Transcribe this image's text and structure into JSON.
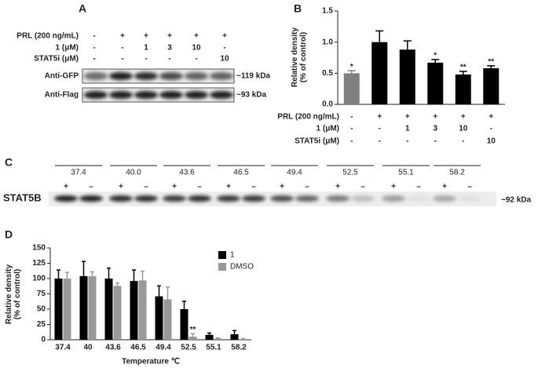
{
  "panel_a": {
    "letter": "A",
    "conditions": [
      {
        "label": "PRL (200 ng/mL)",
        "values": [
          "-",
          "+",
          "+",
          "+",
          "+",
          "+"
        ]
      },
      {
        "label": "1    (μM)",
        "values": [
          "-",
          "-",
          "1",
          "3",
          "10",
          "-"
        ]
      },
      {
        "label": "STAT5i (μM)",
        "values": [
          "-",
          "-",
          "-",
          "-",
          "-",
          "10"
        ]
      }
    ],
    "blots": [
      {
        "label": "Anti-GFP",
        "size": "~119 kDa"
      },
      {
        "label": "Anti-Flag",
        "size": "~93 kDa"
      }
    ]
  },
  "panel_c": {
    "letter": "C",
    "temperatures": [
      "37.4",
      "40.0",
      "43.6",
      "46.5",
      "49.4",
      "52.5",
      "55.1",
      "58.2"
    ],
    "treatments": [
      "+",
      "–"
    ],
    "protein": "STAT5B",
    "size": "~92 kDa"
  },
  "chart_data": [
    {
      "letter": "B",
      "type": "bar",
      "ylabel": [
        "Relative density",
        "(% of control)"
      ],
      "values": [
        0.5,
        1.0,
        0.88,
        0.67,
        0.48,
        0.58
      ],
      "errors": [
        0.04,
        0.18,
        0.14,
        0.05,
        0.05,
        0.04
      ],
      "colors": [
        "#808080",
        "#000000",
        "#000000",
        "#000000",
        "#000000",
        "#000000"
      ],
      "significance": [
        "*",
        null,
        null,
        "*",
        "**",
        "**"
      ],
      "ylim": [
        0,
        1.5
      ],
      "yticks": [
        {
          "value": 0,
          "label": "0.0"
        },
        0.5,
        {
          "value": 1,
          "label": "1.0"
        },
        1.5
      ],
      "conditions": [
        {
          "label": "PRL (200 ng/mL)",
          "values": [
            "-",
            "+",
            "+",
            "+",
            "+",
            "+"
          ]
        },
        {
          "label": "1    (μM)",
          "values": [
            "-",
            "-",
            "1",
            "3",
            "10",
            "-"
          ]
        },
        {
          "label": "STAT5i (μM)",
          "values": [
            "-",
            "-",
            "-",
            "-",
            "-",
            "10"
          ]
        }
      ]
    },
    {
      "letter": "D",
      "type": "bar",
      "ylabel": [
        "Relative density",
        "(% of control)"
      ],
      "xlabel": "Temperature ℃",
      "categories": [
        "37.4",
        "40",
        "43.6",
        "46.5",
        "49.4",
        "52.5",
        "55.1",
        "58.2"
      ],
      "series": [
        {
          "name": "1",
          "color": "#000000",
          "values": [
            100,
            104,
            100,
            96,
            71,
            50,
            8,
            9
          ],
          "errors": [
            14,
            24,
            17,
            18,
            17,
            13,
            3,
            6
          ],
          "significance": [
            null,
            null,
            null,
            null,
            null,
            null,
            null,
            null
          ]
        },
        {
          "name": "DMSO",
          "color": "#999999",
          "values": [
            100,
            104,
            88,
            97,
            66,
            5,
            2,
            1
          ],
          "errors": [
            10,
            7,
            5,
            15,
            20,
            5,
            1,
            1
          ],
          "significance": [
            null,
            null,
            null,
            null,
            null,
            "**",
            null,
            null
          ]
        }
      ],
      "ylim": [
        0,
        150
      ],
      "yticks": [
        0,
        25,
        50,
        75,
        100,
        125,
        150
      ]
    }
  ]
}
